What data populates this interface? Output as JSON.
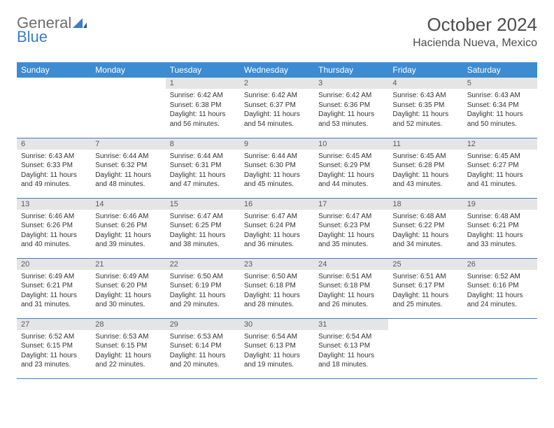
{
  "brand": {
    "part1": "General",
    "part2": "Blue"
  },
  "title": "October 2024",
  "location": "Hacienda Nueva, Mexico",
  "colors": {
    "header_bg": "#3d8bd1",
    "header_text": "#ffffff",
    "daynum_bg": "#e5e5e5",
    "rule": "#3d7cc9",
    "brand_gray": "#6d6d6d",
    "brand_blue": "#3d7cc9",
    "body_text": "#333333",
    "background": "#ffffff"
  },
  "typography": {
    "title_fontsize": 26,
    "location_fontsize": 16,
    "dayheader_fontsize": 12,
    "daynum_fontsize": 11,
    "body_fontsize": 10
  },
  "calendar": {
    "type": "table",
    "columns": [
      "Sunday",
      "Monday",
      "Tuesday",
      "Wednesday",
      "Thursday",
      "Friday",
      "Saturday"
    ],
    "weeks": [
      [
        null,
        null,
        {
          "n": "1",
          "sr": "6:42 AM",
          "ss": "6:38 PM",
          "dl": "11 hours and 56 minutes."
        },
        {
          "n": "2",
          "sr": "6:42 AM",
          "ss": "6:37 PM",
          "dl": "11 hours and 54 minutes."
        },
        {
          "n": "3",
          "sr": "6:42 AM",
          "ss": "6:36 PM",
          "dl": "11 hours and 53 minutes."
        },
        {
          "n": "4",
          "sr": "6:43 AM",
          "ss": "6:35 PM",
          "dl": "11 hours and 52 minutes."
        },
        {
          "n": "5",
          "sr": "6:43 AM",
          "ss": "6:34 PM",
          "dl": "11 hours and 50 minutes."
        }
      ],
      [
        {
          "n": "6",
          "sr": "6:43 AM",
          "ss": "6:33 PM",
          "dl": "11 hours and 49 minutes."
        },
        {
          "n": "7",
          "sr": "6:44 AM",
          "ss": "6:32 PM",
          "dl": "11 hours and 48 minutes."
        },
        {
          "n": "8",
          "sr": "6:44 AM",
          "ss": "6:31 PM",
          "dl": "11 hours and 47 minutes."
        },
        {
          "n": "9",
          "sr": "6:44 AM",
          "ss": "6:30 PM",
          "dl": "11 hours and 45 minutes."
        },
        {
          "n": "10",
          "sr": "6:45 AM",
          "ss": "6:29 PM",
          "dl": "11 hours and 44 minutes."
        },
        {
          "n": "11",
          "sr": "6:45 AM",
          "ss": "6:28 PM",
          "dl": "11 hours and 43 minutes."
        },
        {
          "n": "12",
          "sr": "6:45 AM",
          "ss": "6:27 PM",
          "dl": "11 hours and 41 minutes."
        }
      ],
      [
        {
          "n": "13",
          "sr": "6:46 AM",
          "ss": "6:26 PM",
          "dl": "11 hours and 40 minutes."
        },
        {
          "n": "14",
          "sr": "6:46 AM",
          "ss": "6:26 PM",
          "dl": "11 hours and 39 minutes."
        },
        {
          "n": "15",
          "sr": "6:47 AM",
          "ss": "6:25 PM",
          "dl": "11 hours and 38 minutes."
        },
        {
          "n": "16",
          "sr": "6:47 AM",
          "ss": "6:24 PM",
          "dl": "11 hours and 36 minutes."
        },
        {
          "n": "17",
          "sr": "6:47 AM",
          "ss": "6:23 PM",
          "dl": "11 hours and 35 minutes."
        },
        {
          "n": "18",
          "sr": "6:48 AM",
          "ss": "6:22 PM",
          "dl": "11 hours and 34 minutes."
        },
        {
          "n": "19",
          "sr": "6:48 AM",
          "ss": "6:21 PM",
          "dl": "11 hours and 33 minutes."
        }
      ],
      [
        {
          "n": "20",
          "sr": "6:49 AM",
          "ss": "6:21 PM",
          "dl": "11 hours and 31 minutes."
        },
        {
          "n": "21",
          "sr": "6:49 AM",
          "ss": "6:20 PM",
          "dl": "11 hours and 30 minutes."
        },
        {
          "n": "22",
          "sr": "6:50 AM",
          "ss": "6:19 PM",
          "dl": "11 hours and 29 minutes."
        },
        {
          "n": "23",
          "sr": "6:50 AM",
          "ss": "6:18 PM",
          "dl": "11 hours and 28 minutes."
        },
        {
          "n": "24",
          "sr": "6:51 AM",
          "ss": "6:18 PM",
          "dl": "11 hours and 26 minutes."
        },
        {
          "n": "25",
          "sr": "6:51 AM",
          "ss": "6:17 PM",
          "dl": "11 hours and 25 minutes."
        },
        {
          "n": "26",
          "sr": "6:52 AM",
          "ss": "6:16 PM",
          "dl": "11 hours and 24 minutes."
        }
      ],
      [
        {
          "n": "27",
          "sr": "6:52 AM",
          "ss": "6:15 PM",
          "dl": "11 hours and 23 minutes."
        },
        {
          "n": "28",
          "sr": "6:53 AM",
          "ss": "6:15 PM",
          "dl": "11 hours and 22 minutes."
        },
        {
          "n": "29",
          "sr": "6:53 AM",
          "ss": "6:14 PM",
          "dl": "11 hours and 20 minutes."
        },
        {
          "n": "30",
          "sr": "6:54 AM",
          "ss": "6:13 PM",
          "dl": "11 hours and 19 minutes."
        },
        {
          "n": "31",
          "sr": "6:54 AM",
          "ss": "6:13 PM",
          "dl": "11 hours and 18 minutes."
        },
        null,
        null
      ]
    ]
  }
}
